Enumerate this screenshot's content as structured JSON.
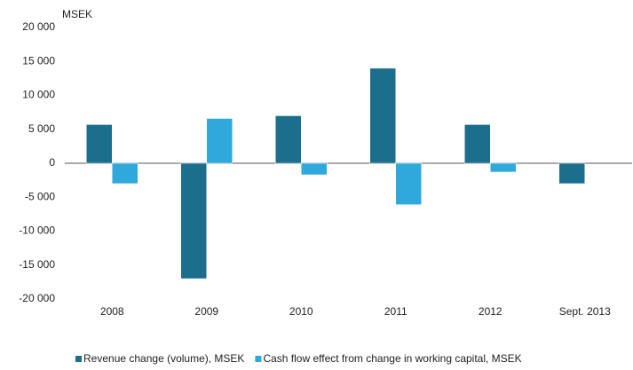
{
  "chart_data": {
    "type": "bar",
    "y_label": "MSEK",
    "categories": [
      "2008",
      "2009",
      "2010",
      "2011",
      "2012",
      "Sept. 2013"
    ],
    "series": [
      {
        "name": "Revenue change (volume), MSEK",
        "color": "#1b6e8c",
        "values": [
          5700,
          -17000,
          7000,
          14000,
          5700,
          -3000
        ]
      },
      {
        "name": "Cash flow effect from change in working capital, MSEK",
        "color": "#2fa9dc",
        "values": [
          -3000,
          6600,
          -1700,
          -6100,
          -1300,
          null
        ]
      }
    ],
    "ylim": [
      -20000,
      20000
    ],
    "yticks": [
      {
        "value": -20000,
        "label": "-20 000"
      },
      {
        "value": -15000,
        "label": "-15 000"
      },
      {
        "value": -10000,
        "label": "-10 000"
      },
      {
        "value": -5000,
        "label": "-5 000"
      },
      0,
      {
        "value": 5000,
        "label": "5 000"
      },
      {
        "value": 10000,
        "label": "10 000"
      },
      {
        "value": 15000,
        "label": "15 000"
      },
      {
        "value": 20000,
        "label": "20 000"
      }
    ],
    "legend": "bottom",
    "grid": false
  }
}
